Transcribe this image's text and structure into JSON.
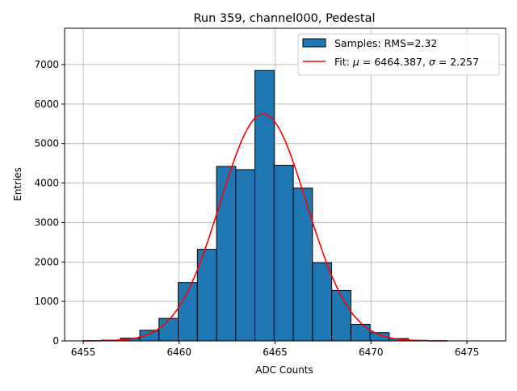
{
  "chart_data": {
    "type": "bar",
    "title": "Run 359, channel000, Pedestal",
    "xlabel": "ADC Counts",
    "ylabel": "Entries",
    "xlim": [
      6454.03,
      6477.02
    ],
    "ylim": [
      0,
      7920
    ],
    "grid": true,
    "legend_placement": "top-right",
    "x_ticks": [
      6455,
      6460,
      6465,
      6470,
      6475
    ],
    "y_ticks": [
      0,
      1000,
      2000,
      3000,
      4000,
      5000,
      6000,
      7000
    ],
    "histogram": {
      "name": "Samples: RMS=2.32",
      "color": "#1f77b4",
      "bin_width": 1,
      "bin_starts": [
        6455,
        6456,
        6457,
        6458,
        6459,
        6460,
        6461,
        6462,
        6463,
        6464,
        6465,
        6466,
        6467,
        6468,
        6469,
        6470,
        6471,
        6472,
        6473
      ],
      "values": [
        5,
        20,
        70,
        270,
        570,
        1480,
        2320,
        4420,
        4340,
        6850,
        4450,
        3870,
        1980,
        1280,
        420,
        210,
        60,
        15,
        3
      ]
    },
    "fit": {
      "name_prefix": "Fit: ",
      "name_mu": "μ",
      "name_mid": " = 6464.387, ",
      "name_sigma": "σ",
      "name_end": " = 2.257",
      "color": "#ff0000",
      "mu": 6464.387,
      "sigma": 2.257,
      "amplitude": 5750,
      "x_range": [
        6455,
        6474
      ]
    }
  }
}
